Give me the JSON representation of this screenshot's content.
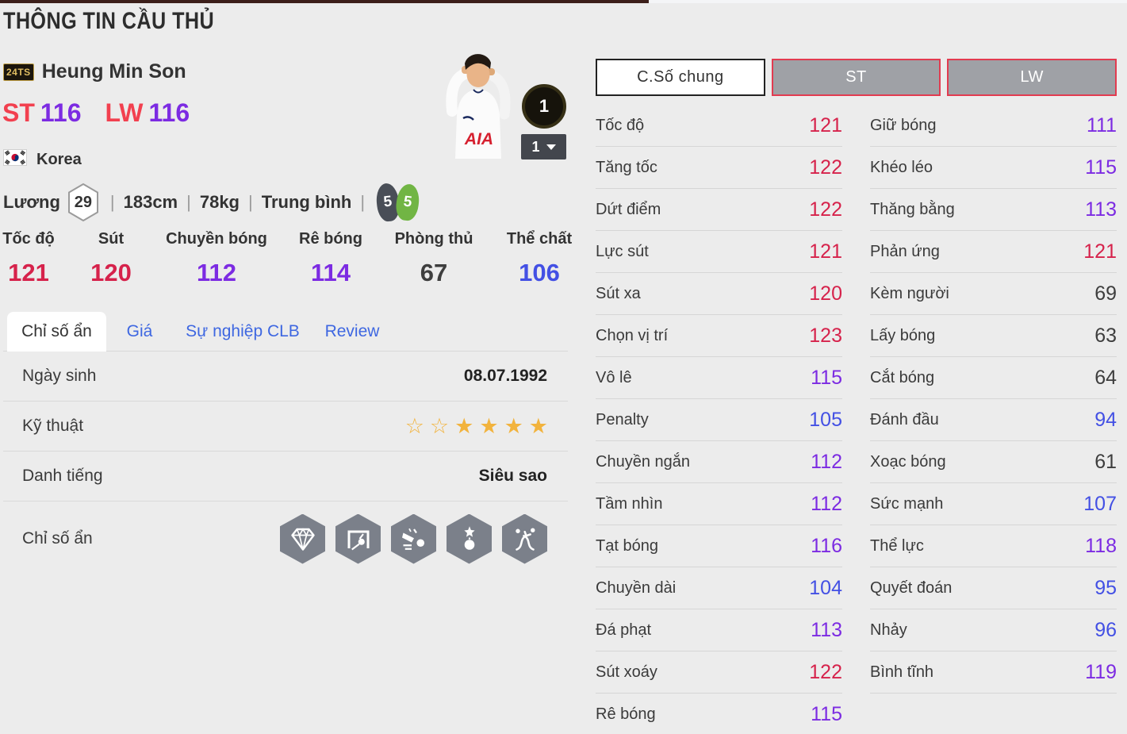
{
  "colors": {
    "red": "#d6224b",
    "purple": "#7c2be2",
    "blue": "#4350e4",
    "dark": "#3e3e3e",
    "tab_blue": "#3e67e1",
    "button_border_red": "#e23b50",
    "star_gold": "#f2b33d",
    "foot_dark": "#494e57",
    "foot_green": "#71b544",
    "topline": "#3c1f1a"
  },
  "page": {
    "title": "THÔNG TIN CẦU THỦ"
  },
  "player": {
    "card_badge": "24TS",
    "name": "Heung Min Son",
    "positions": [
      {
        "pos": "ST",
        "rating": "116"
      },
      {
        "pos": "LW",
        "rating": "116"
      }
    ],
    "nationality": "Korea",
    "salary_label": "Lương",
    "salary": "29",
    "height": "183cm",
    "weight": "78kg",
    "body_type": "Trung bình",
    "weak_foot_left": "5",
    "weak_foot_right": "5",
    "grade_badge": "1",
    "grade_select": "1",
    "photo_shirt_text": "AIA"
  },
  "summary_stats": [
    {
      "label": "Tốc độ",
      "value": 121
    },
    {
      "label": "Sút",
      "value": 120
    },
    {
      "label": "Chuyền bóng",
      "value": 112
    },
    {
      "label": "Rê bóng",
      "value": 114
    },
    {
      "label": "Phòng thủ",
      "value": 67
    },
    {
      "label": "Thể chất",
      "value": 106
    }
  ],
  "tabs": [
    {
      "label": "Chỉ số ẩn",
      "active": true
    },
    {
      "label": "Giá",
      "active": false
    },
    {
      "label": "Sự nghiệp CLB",
      "active": false
    },
    {
      "label": "Review",
      "active": false
    }
  ],
  "details": {
    "rows": [
      {
        "label": "Ngày sinh",
        "value": "08.07.1992"
      },
      {
        "label": "Kỹ thuật",
        "stars_total": 6,
        "stars_filled": 4
      },
      {
        "label": "Danh tiếng",
        "value": "Siêu sao"
      },
      {
        "label": "Chỉ số ẩn",
        "icons": [
          "diamond",
          "goalkeeper-goal",
          "power-shot",
          "skill-star-ball",
          "dribble-path"
        ]
      }
    ]
  },
  "stat_panel": {
    "buttons": [
      {
        "label": "C.Số chung",
        "active": true
      },
      {
        "label": "ST",
        "active": false
      },
      {
        "label": "LW",
        "active": false
      }
    ],
    "left": [
      {
        "label": "Tốc độ",
        "value": 121
      },
      {
        "label": "Tăng tốc",
        "value": 122
      },
      {
        "label": "Dứt điểm",
        "value": 122
      },
      {
        "label": "Lực sút",
        "value": 121
      },
      {
        "label": "Sút xa",
        "value": 120
      },
      {
        "label": "Chọn vị trí",
        "value": 123
      },
      {
        "label": "Vô lê",
        "value": 115
      },
      {
        "label": "Penalty",
        "value": 105
      },
      {
        "label": "Chuyền ngắn",
        "value": 112
      },
      {
        "label": "Tầm nhìn",
        "value": 112
      },
      {
        "label": "Tạt bóng",
        "value": 116
      },
      {
        "label": "Chuyền dài",
        "value": 104
      },
      {
        "label": "Đá phạt",
        "value": 113
      },
      {
        "label": "Sút xoáy",
        "value": 122
      },
      {
        "label": "Rê bóng",
        "value": 115
      }
    ],
    "right": [
      {
        "label": "Giữ bóng",
        "value": 111
      },
      {
        "label": "Khéo léo",
        "value": 115
      },
      {
        "label": "Thăng bằng",
        "value": 113
      },
      {
        "label": "Phản ứng",
        "value": 121
      },
      {
        "label": "Kèm người",
        "value": 69
      },
      {
        "label": "Lấy bóng",
        "value": 63
      },
      {
        "label": "Cắt bóng",
        "value": 64
      },
      {
        "label": "Đánh đầu",
        "value": 94
      },
      {
        "label": "Xoạc bóng",
        "value": 61
      },
      {
        "label": "Sức mạnh",
        "value": 107
      },
      {
        "label": "Thể lực",
        "value": 118
      },
      {
        "label": "Quyết đoán",
        "value": 95
      },
      {
        "label": "Nhảy",
        "value": 96
      },
      {
        "label": "Bình tĩnh",
        "value": 119
      }
    ]
  }
}
